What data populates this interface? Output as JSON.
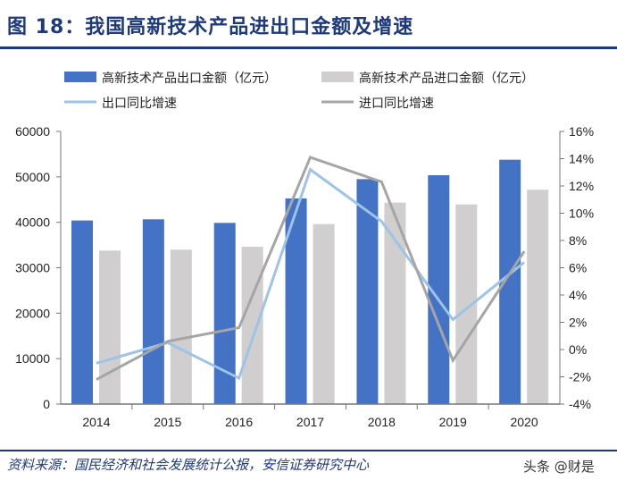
{
  "title": "图 18：我国高新技术产品进出口金额及增速",
  "source": "资料来源：国民经济和社会发展统计公报，安信证券研究中心",
  "watermark": "头条 @财是",
  "chart_data": {
    "type": "bar+line",
    "categories": [
      "2014",
      "2015",
      "2016",
      "2017",
      "2018",
      "2019",
      "2020"
    ],
    "series": [
      {
        "name": "高新技术产品出口金额（亿元）",
        "type": "bar",
        "axis": "left",
        "color": "#4472c4",
        "values": [
          40400,
          40660,
          39870,
          45250,
          49500,
          50360,
          53770
        ]
      },
      {
        "name": "高新技术产品进口金额（亿元）",
        "type": "bar",
        "axis": "left",
        "color": "#d0cece",
        "values": [
          33780,
          33970,
          34620,
          39600,
          44320,
          43930,
          47160
        ]
      },
      {
        "name": "出口同比增速",
        "type": "line",
        "axis": "right",
        "color": "#9dc3e6",
        "values": [
          -1.0,
          0.5,
          -2.1,
          13.2,
          9.4,
          2.2,
          6.4
        ]
      },
      {
        "name": "进口同比增速",
        "type": "line",
        "axis": "right",
        "color": "#a5a5a5",
        "values": [
          -2.2,
          0.6,
          1.6,
          14.1,
          12.3,
          -0.8,
          7.2
        ]
      }
    ],
    "left_axis": {
      "ylim": [
        0,
        60000
      ],
      "ticks": [
        "0",
        "10000",
        "20000",
        "30000",
        "40000",
        "50000",
        "60000"
      ]
    },
    "right_axis": {
      "ylim": [
        -4,
        16
      ],
      "ticks": [
        "-4%",
        "-2%",
        "0%",
        "2%",
        "4%",
        "6%",
        "8%",
        "10%",
        "12%",
        "14%",
        "16%"
      ]
    },
    "legend_position": "top",
    "grid": false
  }
}
